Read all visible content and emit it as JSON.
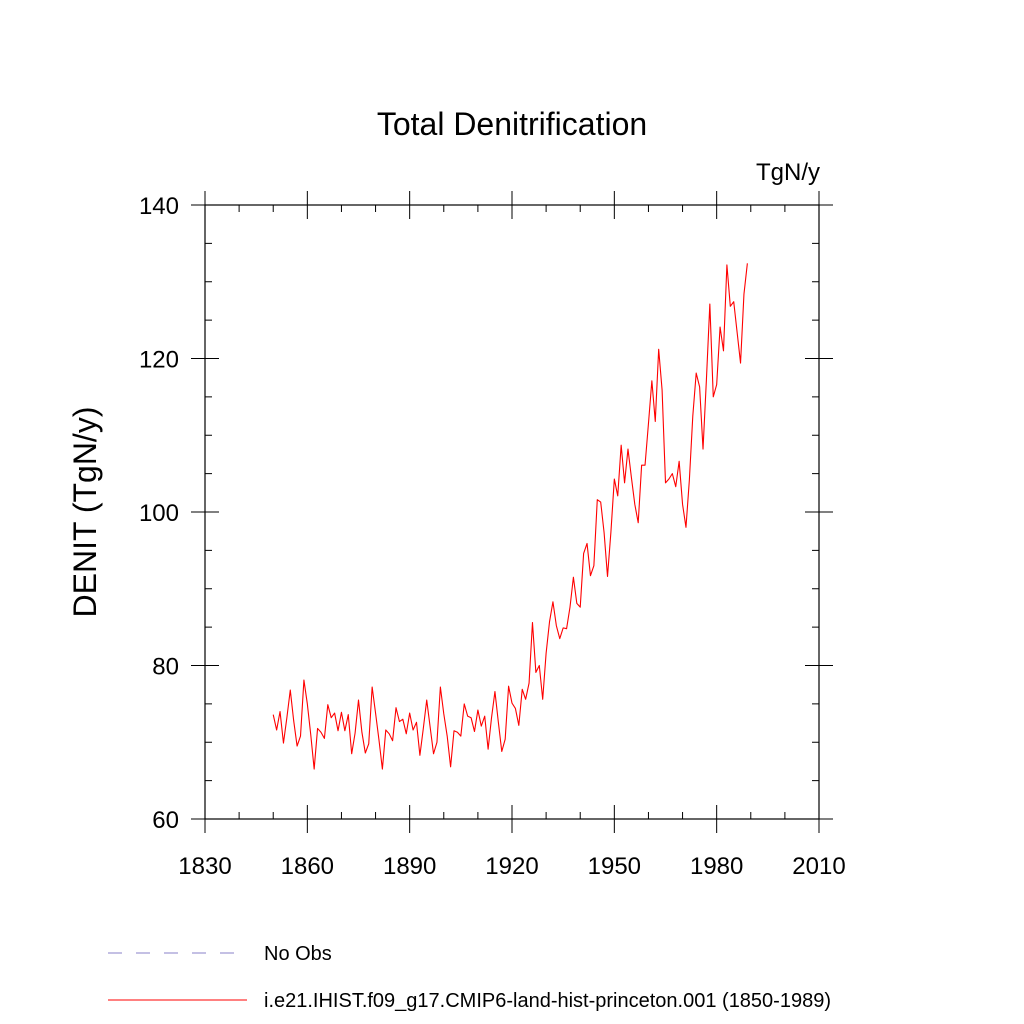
{
  "chart_data": {
    "type": "line",
    "title": "Total Denitrification",
    "units_label": "TgN/y",
    "xlabel": "",
    "ylabel": "DENIT  (TgN/y)",
    "xlim": [
      1830,
      2010
    ],
    "ylim": [
      60,
      140
    ],
    "x_ticks": [
      "1830",
      "1860",
      "1890",
      "1920",
      "1950",
      "1980",
      "2010"
    ],
    "y_ticks": [
      "60",
      "80",
      "100",
      "120",
      "140"
    ],
    "grid": false,
    "legend_position": "bottom-left",
    "legend": [
      {
        "name": "No Obs",
        "color": "#8a80c8",
        "style": "dashed"
      },
      {
        "name": "i.e21.IHIST.f09_g17.CMIP6-land-hist-princeton.001 (1850-1989)",
        "color": "#ff0000",
        "style": "solid"
      }
    ],
    "series": [
      {
        "name": "i.e21.IHIST.f09_g17.CMIP6-land-hist-princeton.001 (1850-1989)",
        "color": "#ff0000",
        "x_start": 1850,
        "x_step": 1,
        "values": [
          73.6,
          71.6,
          74.0,
          69.9,
          73.2,
          76.8,
          72.8,
          69.5,
          70.8,
          78.1,
          75.0,
          71.0,
          66.5,
          71.8,
          71.3,
          70.5,
          74.9,
          73.2,
          73.8,
          71.5,
          73.9,
          71.5,
          73.6,
          68.5,
          71.2,
          75.5,
          71.3,
          68.6,
          69.8,
          77.2,
          73.8,
          70.3,
          66.5,
          71.6,
          71.1,
          70.2,
          74.5,
          72.7,
          73.0,
          71.1,
          73.8,
          71.6,
          72.6,
          68.3,
          71.8,
          75.5,
          72.0,
          68.5,
          70.0,
          77.2,
          73.7,
          70.8,
          66.8,
          71.5,
          71.3,
          70.8,
          75.0,
          73.4,
          73.2,
          71.4,
          74.2,
          72.1,
          73.4,
          69.1,
          73.2,
          76.6,
          72.6,
          68.8,
          70.4,
          77.3,
          75.1,
          74.4,
          72.2,
          76.9,
          75.6,
          77.7,
          85.6,
          79.1,
          80.0,
          75.6,
          81.6,
          85.7,
          88.3,
          85.2,
          83.5,
          84.9,
          84.8,
          87.6,
          91.5,
          88.1,
          87.6,
          94.6,
          95.9,
          91.7,
          93.0,
          101.6,
          101.3,
          97.3,
          91.6,
          97.4,
          104.3,
          102.1,
          108.7,
          103.8,
          108.2,
          104.5,
          101.0,
          98.6,
          106.1,
          106.1,
          111.5,
          117.1,
          111.8,
          121.2,
          115.9,
          103.8,
          104.3,
          105.0,
          103.3,
          106.6,
          101.0,
          98.0,
          104.2,
          112.5,
          118.1,
          116.3,
          108.2,
          117.3,
          127.1,
          115.0,
          116.6,
          124.1,
          121.0,
          132.2,
          126.8,
          127.4,
          123.4,
          119.4,
          128.4,
          132.4
        ]
      }
    ]
  }
}
